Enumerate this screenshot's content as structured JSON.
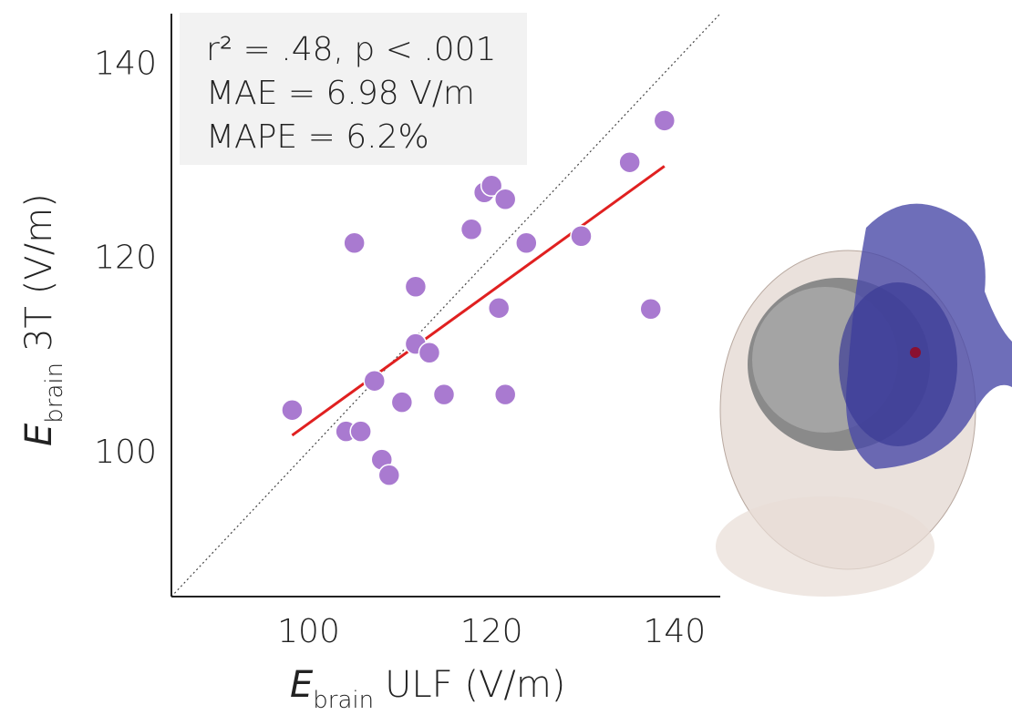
{
  "chart_data": {
    "type": "scatter",
    "x_label": {
      "symbol": "E",
      "subscript": "brain",
      "text": "ULF (V/m)"
    },
    "y_label": {
      "symbol": "E",
      "subscript": "brain",
      "text": "3T (V/m)"
    },
    "annotations": [
      "r² = .48, p < .001",
      "MAE = 6.98 V/m",
      "MAPE = 6.2%"
    ],
    "xlim": [
      85,
      145
    ],
    "ylim": [
      85,
      145
    ],
    "xticks": [
      100,
      120,
      140
    ],
    "yticks": [
      100,
      120,
      140
    ],
    "color": "#a97ad0",
    "x": [
      98.2,
      105.0,
      104.1,
      105.7,
      107.2,
      108.0,
      108.8,
      110.2,
      111.7,
      111.7,
      113.2,
      114.8,
      117.8,
      119.2,
      120.0,
      121.5,
      120.8,
      121.5,
      123.8,
      129.8,
      135.1,
      137.4,
      138.9
    ],
    "values": [
      104.2,
      121.4,
      102.0,
      102.0,
      107.2,
      99.1,
      97.5,
      105.0,
      116.9,
      111.0,
      110.1,
      105.8,
      122.8,
      126.6,
      127.3,
      125.9,
      114.7,
      105.8,
      121.4,
      122.1,
      129.7,
      114.6,
      134.0
    ],
    "fit_line": {
      "x": [
        98.2,
        138.9
      ],
      "values": [
        101.6,
        129.3
      ],
      "color": "#e02020"
    },
    "identity_line": true,
    "grid": false
  }
}
